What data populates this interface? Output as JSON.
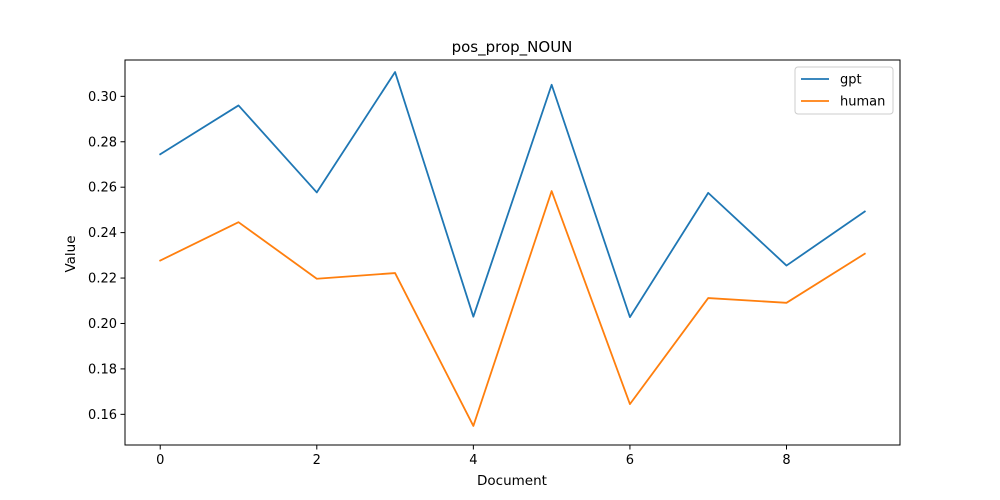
{
  "chart_data": {
    "type": "line",
    "title": "pos_prop_NOUN",
    "xlabel": "Document",
    "ylabel": "Value",
    "x": [
      0,
      1,
      2,
      3,
      4,
      5,
      6,
      7,
      8,
      9
    ],
    "xlim": [
      -0.45,
      9.45
    ],
    "ylim": [
      0.1465,
      0.316
    ],
    "xticks": [
      0,
      2,
      4,
      6,
      8
    ],
    "xtick_labels": [
      "0",
      "2",
      "4",
      "6",
      "8"
    ],
    "yticks": [
      0.16,
      0.18,
      0.2,
      0.22,
      0.24,
      0.26,
      0.28,
      0.3
    ],
    "ytick_labels": [
      "0.16",
      "0.18",
      "0.20",
      "0.22",
      "0.24",
      "0.26",
      "0.28",
      "0.30"
    ],
    "grid": false,
    "legend_position": "top-right",
    "series": [
      {
        "name": "gpt",
        "color": "#1f77b4",
        "values": [
          0.2745,
          0.296,
          0.2577,
          0.3107,
          0.203,
          0.3051,
          0.2028,
          0.2575,
          0.2255,
          0.2493
        ]
      },
      {
        "name": "human",
        "color": "#ff7f0e",
        "values": [
          0.2277,
          0.2446,
          0.2197,
          0.2222,
          0.1549,
          0.2583,
          0.1645,
          0.2112,
          0.2091,
          0.2307
        ]
      }
    ]
  }
}
